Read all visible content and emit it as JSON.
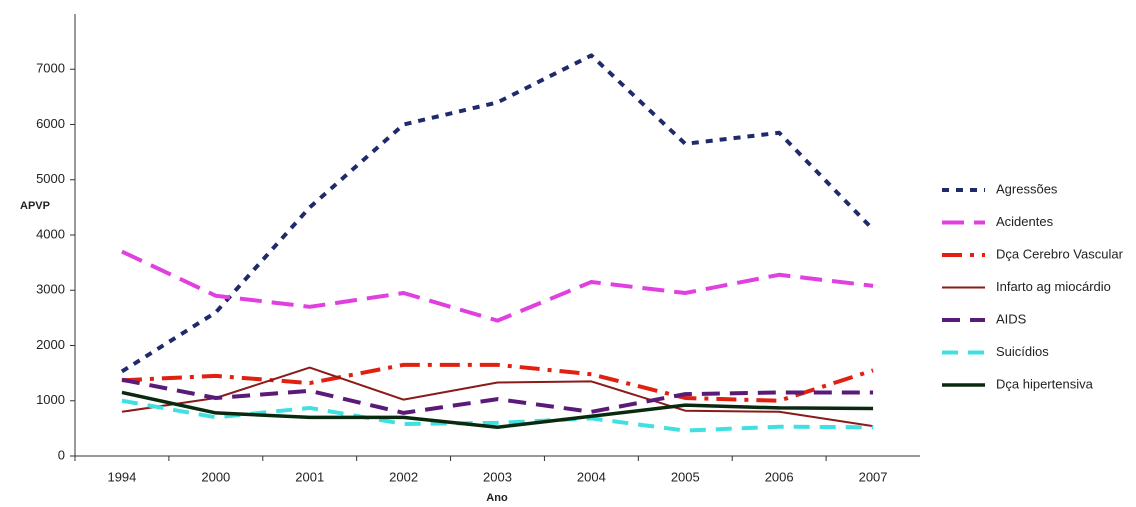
{
  "chart_data": {
    "type": "line",
    "y_label": "APVP",
    "x_label": "Ano",
    "categories": [
      "1994",
      "2000",
      "2001",
      "2002",
      "2003",
      "2004",
      "2005",
      "2006",
      "2007"
    ],
    "ylim": [
      0,
      8000
    ],
    "yticks": [
      0,
      1000,
      2000,
      3000,
      4000,
      5000,
      6000,
      7000
    ],
    "series": [
      {
        "name": "Agressões",
        "color": "#1f2a6b",
        "values": [
          1530,
          2600,
          4500,
          6000,
          6400,
          7250,
          5650,
          5850,
          4100
        ]
      },
      {
        "name": "Acidentes",
        "color": "#e040e0",
        "values": [
          3700,
          2900,
          2700,
          2950,
          2450,
          3150,
          2950,
          3280,
          3080
        ]
      },
      {
        "name": "Dça Cerebro Vascular",
        "color": "#e02010",
        "values": [
          1370,
          1450,
          1320,
          1650,
          1650,
          1480,
          1050,
          1000,
          1550
        ]
      },
      {
        "name": "Infarto ag miocárdio",
        "color": "#8b1a1a",
        "values": [
          800,
          1050,
          1600,
          1020,
          1330,
          1350,
          820,
          800,
          540
        ]
      },
      {
        "name": "AIDS",
        "color": "#5a1a78",
        "values": [
          1380,
          1050,
          1180,
          780,
          1030,
          800,
          1120,
          1150,
          1150
        ]
      },
      {
        "name": "Suicídios",
        "color": "#40e0e0",
        "values": [
          1000,
          700,
          870,
          580,
          600,
          680,
          460,
          530,
          520
        ]
      },
      {
        "name": "Dça hipertensiva",
        "color": "#0a2a10",
        "values": [
          1150,
          780,
          700,
          700,
          520,
          720,
          920,
          870,
          860
        ]
      }
    ]
  }
}
